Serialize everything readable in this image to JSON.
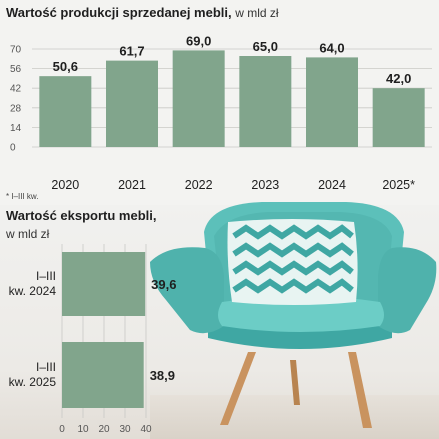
{
  "chart_data": [
    {
      "type": "bar",
      "title": "Wartość produkcji sprzedanej mebli,",
      "unit": "w mld zł",
      "categories": [
        "2020",
        "2021",
        "2022",
        "2023",
        "2024",
        "2025*"
      ],
      "values": [
        50.6,
        61.7,
        69.0,
        65.0,
        64.0,
        42.0
      ],
      "value_labels": [
        "50,6",
        "61,7",
        "69,0",
        "65,0",
        "64,0",
        "42,0"
      ],
      "yticks": [
        "70",
        "56",
        "42",
        "28",
        "14",
        "0"
      ],
      "ylim": [
        0,
        70
      ],
      "grid": true,
      "bar_color": "#81a58c",
      "footnote": "* I–III kw."
    },
    {
      "type": "bar",
      "orientation": "horizontal",
      "title": "Wartość eksportu mebli,",
      "unit": "w mld zł",
      "categories": [
        [
          "I–III",
          "kw. 2024"
        ],
        [
          "I–III",
          "kw. 2025"
        ]
      ],
      "values": [
        39.6,
        38.9
      ],
      "value_labels": [
        "39,6",
        "38,9"
      ],
      "xticks": [
        "0",
        "10",
        "20",
        "30",
        "40"
      ],
      "xlim": [
        0,
        40
      ],
      "grid": true,
      "bar_color": "#81a58c"
    }
  ]
}
